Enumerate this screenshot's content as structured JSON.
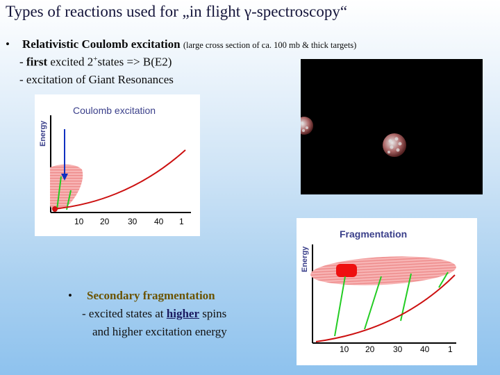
{
  "title": "Types of reactions used for „in flight γ-spectroscopy“",
  "bullet_glyph": "•",
  "section1": {
    "heading": "Relativistic Coulomb excitation",
    "note": "(large cross section of ca. 100 mb & thick targets)",
    "line1_prefix": "- ",
    "line1_bold": "first",
    "line1_mid": " excited 2",
    "line1_sup": "+",
    "line1_suffix": "states => B(E2)",
    "line2": "- excitation of Giant Resonances"
  },
  "coulomb_diagram": {
    "title": "Coulomb excitation",
    "ylabel": "Energy",
    "ticks": [
      "10",
      "20",
      "30",
      "40",
      "1"
    ]
  },
  "fragmentation_diagram": {
    "title": "Fragmentation",
    "ylabel": "Energy",
    "ticks": [
      "10",
      "20",
      "30",
      "40",
      "1"
    ]
  },
  "section2": {
    "heading": "Secondary fragmentation",
    "line1_prefix": "- excited states at ",
    "line1_highlight": "higher",
    "line1_suffix": " spins",
    "line2": "and higher excitation energy"
  },
  "colors": {
    "title": "#14143a",
    "diagram_title": "#3a3f8a",
    "curve": "#cc1010",
    "transition": "#22cc22",
    "coulomb_arrow": "#1030c0",
    "band": "#f4a0a0"
  }
}
